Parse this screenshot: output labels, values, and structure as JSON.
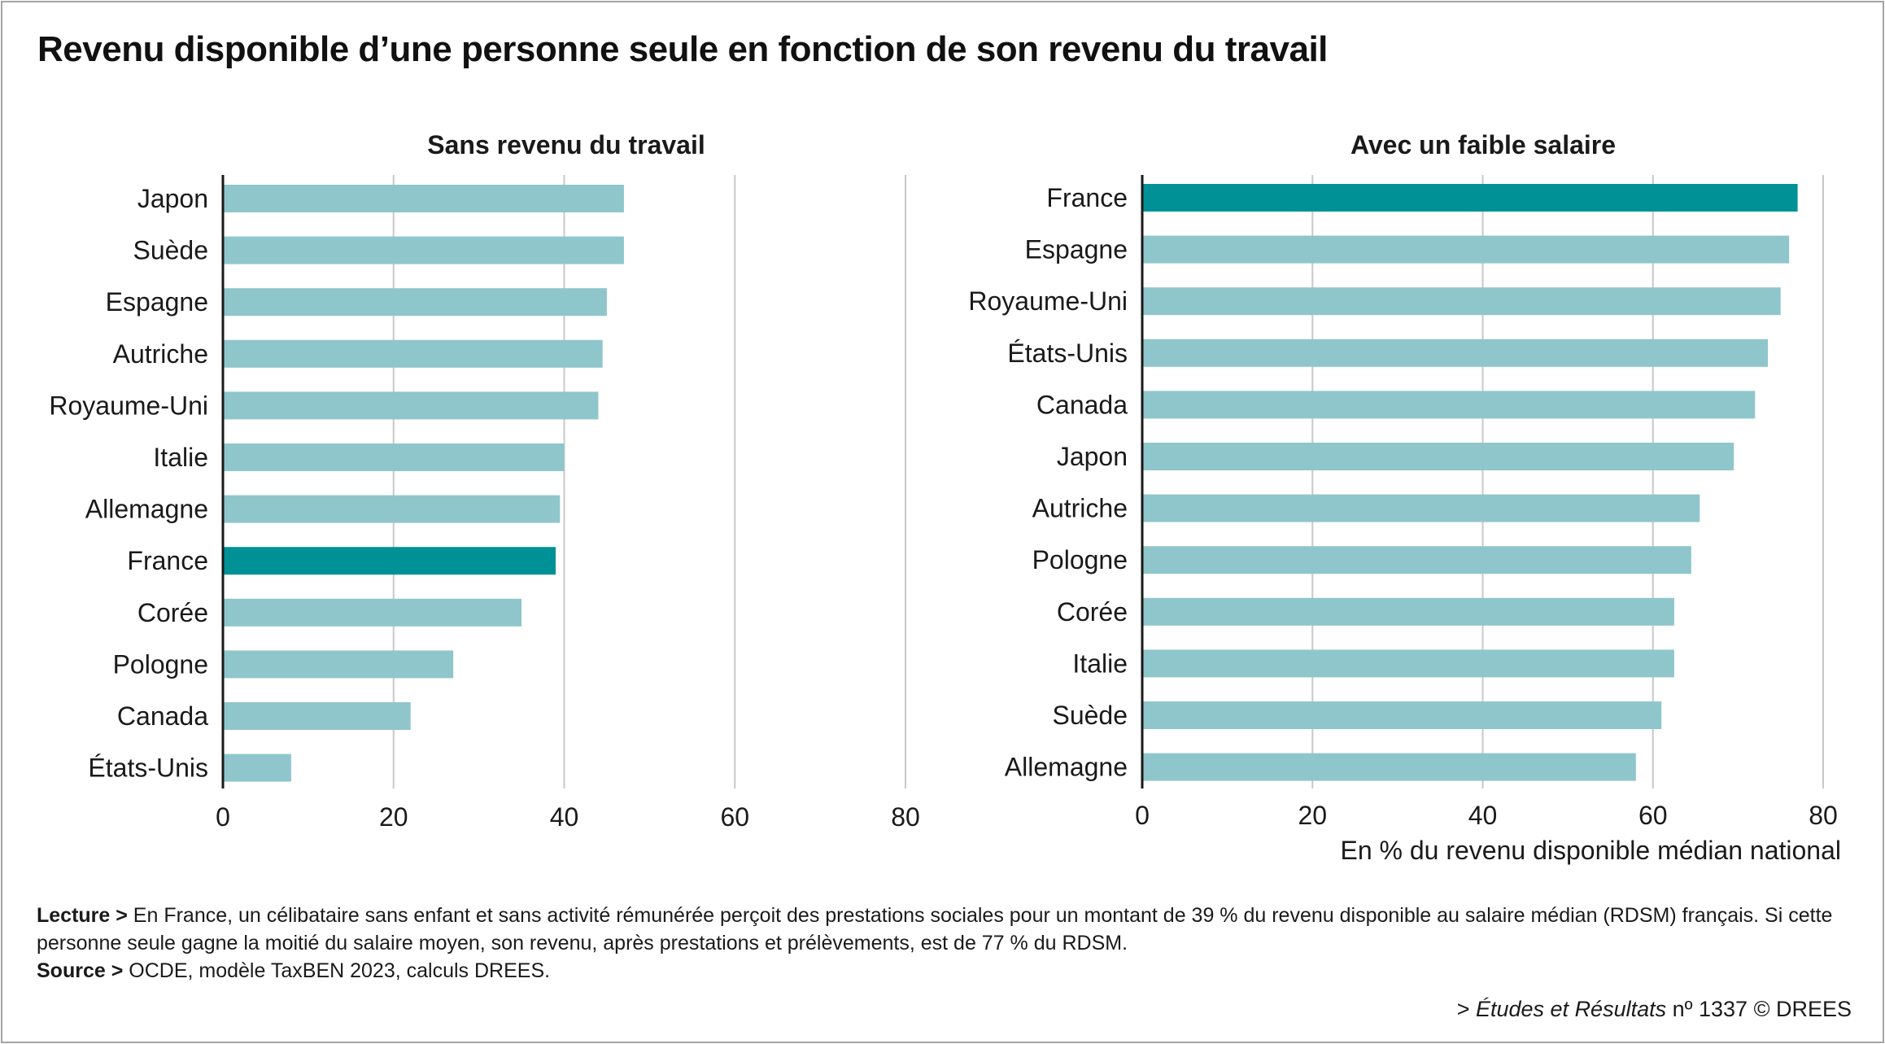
{
  "title": "Revenu disponible d’une personne seule en fonction de son revenu du travail",
  "colors": {
    "bar": "#8fc6cb",
    "highlight": "#009196",
    "grid": "#c8c8c8",
    "axis": "#1a1a1a"
  },
  "chart_data": [
    {
      "type": "bar",
      "orientation": "horizontal",
      "title": "Sans revenu du travail",
      "categories": [
        "Japon",
        "Suède",
        "Espagne",
        "Autriche",
        "Royaume-Uni",
        "Italie",
        "Allemagne",
        "France",
        "Corée",
        "Pologne",
        "Canada",
        "États-Unis"
      ],
      "values": [
        47,
        47,
        45,
        44.5,
        44,
        40,
        39.5,
        39,
        35,
        27,
        22,
        8
      ],
      "highlight": "France",
      "xlim": [
        0,
        80
      ],
      "xticks": [
        "0",
        "20",
        "40",
        "60",
        "80"
      ],
      "xlabel": "",
      "grid": true
    },
    {
      "type": "bar",
      "orientation": "horizontal",
      "title": "Avec un faible salaire",
      "categories": [
        "France",
        "Espagne",
        "Royaume-Uni",
        "États-Unis",
        "Canada",
        "Japon",
        "Autriche",
        "Pologne",
        "Corée",
        "Italie",
        "Suède",
        "Allemagne"
      ],
      "values": [
        77,
        76,
        75,
        73.5,
        72,
        69.5,
        65.5,
        64.5,
        62.5,
        62.5,
        61,
        58
      ],
      "highlight": "France",
      "xlim": [
        0,
        80
      ],
      "xticks": [
        "0",
        "20",
        "40",
        "60",
        "80"
      ],
      "xlabel": "En % du revenu disponible médian national",
      "grid": true
    }
  ],
  "footer": {
    "lecture_label": "Lecture >",
    "lecture_text": " En France, un célibataire sans enfant et sans activité rémunérée perçoit des prestations sociales pour un montant de 39 % du revenu disponible au salaire médian (RDSM) français. Si cette personne seule gagne la moitié du salaire moyen, son revenu, après prestations et prélèvements, est de 77 % du RDSM.",
    "source_label": "Source >",
    "source_text": " OCDE, modèle TaxBEN 2023, calculs DREES.",
    "credit_prefix": "> ",
    "credit_publication": "Études et Résultats",
    "credit_suffix": " nº 1337 © DREES"
  }
}
